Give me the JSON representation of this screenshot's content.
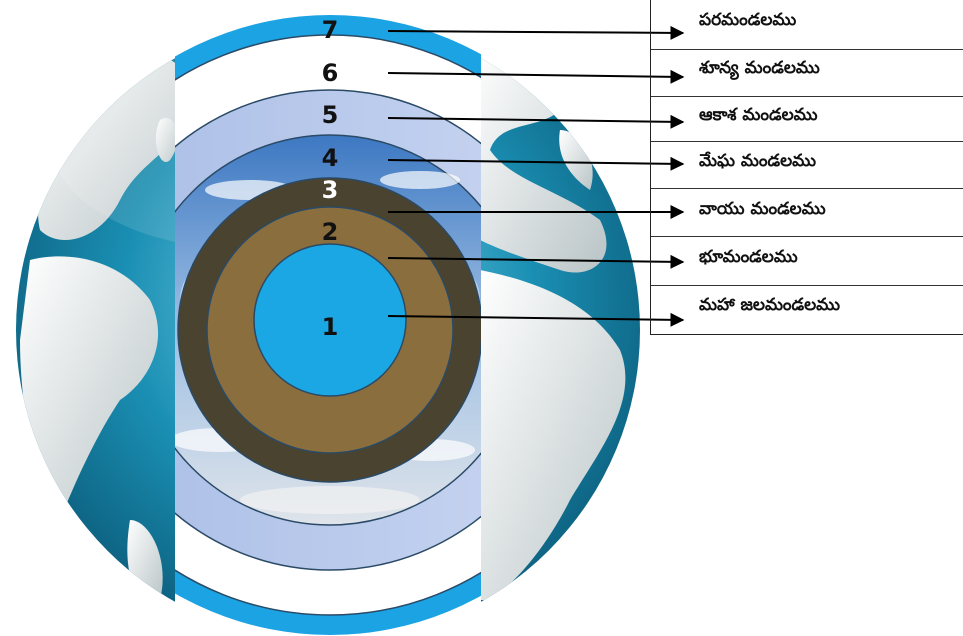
{
  "layers": [
    {
      "number": "1",
      "label": "మహా జలమండలము"
    },
    {
      "number": "2",
      "label": "భూమండలము"
    },
    {
      "number": "3",
      "label": "వాయు మండలము"
    },
    {
      "number": "4",
      "label": "మేఘ మండలము"
    },
    {
      "number": "5",
      "label": "ఆకాశ మండలము"
    },
    {
      "number": "6",
      "label": "శూన్య మండలము"
    },
    {
      "number": "7",
      "label": "పరమండలము"
    }
  ],
  "colors": {
    "layer1": "#1aa7e4",
    "layer2": "#8a6e3d",
    "layer3": "#4a4330",
    "layer5": "#b8c9ea",
    "layer6": "#ffffff",
    "layer7": "#1ba3e3",
    "ocean": "#1a8fb3",
    "land": "#e6ecec"
  }
}
